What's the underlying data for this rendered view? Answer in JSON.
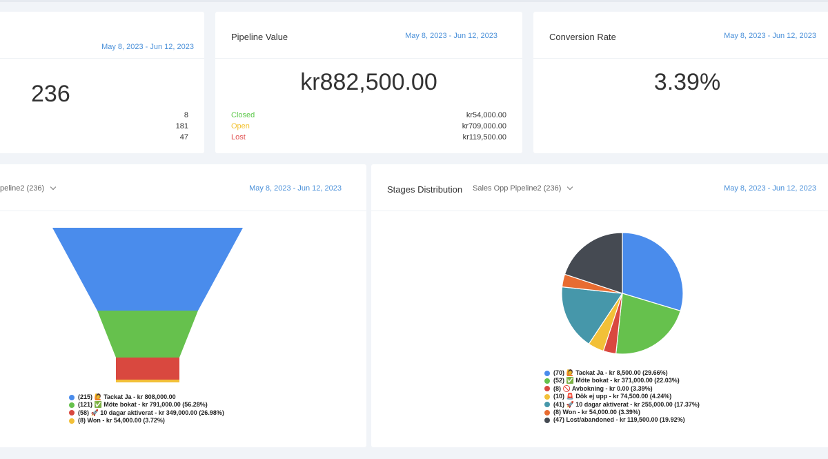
{
  "cards": {
    "count": {
      "date": "May 8, 2023 - Jun 12, 2023",
      "value": "236",
      "rows": [
        "8",
        "181",
        "47"
      ]
    },
    "pipeline": {
      "title": "Pipeline Value",
      "date": "May 8, 2023 - Jun 12, 2023",
      "value": "kr882,500.00",
      "rows": [
        {
          "label": "Closed",
          "value": "kr54,000.00"
        },
        {
          "label": "Open",
          "value": "kr709,000.00"
        },
        {
          "label": "Lost",
          "value": "kr119,500.00"
        }
      ]
    },
    "conversion": {
      "title": "Conversion Rate",
      "date": "May 8, 2023 - Jun 12, 2023",
      "value": "3.39%"
    }
  },
  "funnel_card": {
    "dropdown": "peline2 (236)",
    "date": "May 8, 2023 - Jun 12, 2023",
    "legend": [
      "(215) 🙋 Tackat Ja - kr 808,000.00",
      "(121) ✅ Möte bokat - kr 791,000.00 (56.28%)",
      "(58) 🚀 10 dagar aktiverat - kr 349,000.00 (26.98%)",
      "(8) Won - kr 54,000.00 (3.72%)"
    ]
  },
  "stages_card": {
    "title": "Stages Distribution",
    "dropdown": "Sales Opp Pipeline2 (236)",
    "date": "May 8, 2023 - Jun 12, 2023",
    "legend": [
      "(70) 🙋 Tackat Ja - kr 8,500.00 (29.66%)",
      "(52) ✅ Möte bokat - kr 371,000.00 (22.03%)",
      "(8) 🚫 Avbokning - kr 0.00 (3.39%)",
      "(10) 🚨 Dök ej upp - kr 74,500.00 (4.24%)",
      "(41) 🚀 10 dagar aktiverat - kr 255,000.00 (17.37%)",
      "(8) Won - kr 54,000.00 (3.39%)",
      "(47) Lost/abandoned - kr 119,500.00 (19.92%)"
    ]
  },
  "chart_data": [
    {
      "type": "funnel",
      "categories": [
        "Tackat Ja",
        "Möte bokat",
        "10 dagar aktiverat",
        "Won"
      ],
      "values": [
        215,
        121,
        58,
        8
      ],
      "colors": [
        "#4a8cec",
        "#66c14d",
        "#d9483f",
        "#f2c038"
      ]
    },
    {
      "type": "pie",
      "categories": [
        "Tackat Ja",
        "Möte bokat",
        "Avbokning",
        "Dök ej upp",
        "10 dagar aktiverat",
        "Won",
        "Lost/abandoned"
      ],
      "values": [
        70,
        52,
        8,
        10,
        41,
        8,
        47
      ],
      "colors": [
        "#4a8cec",
        "#66c14d",
        "#d9483f",
        "#f2c038",
        "#4697aa",
        "#e86c31",
        "#454a52"
      ]
    }
  ]
}
